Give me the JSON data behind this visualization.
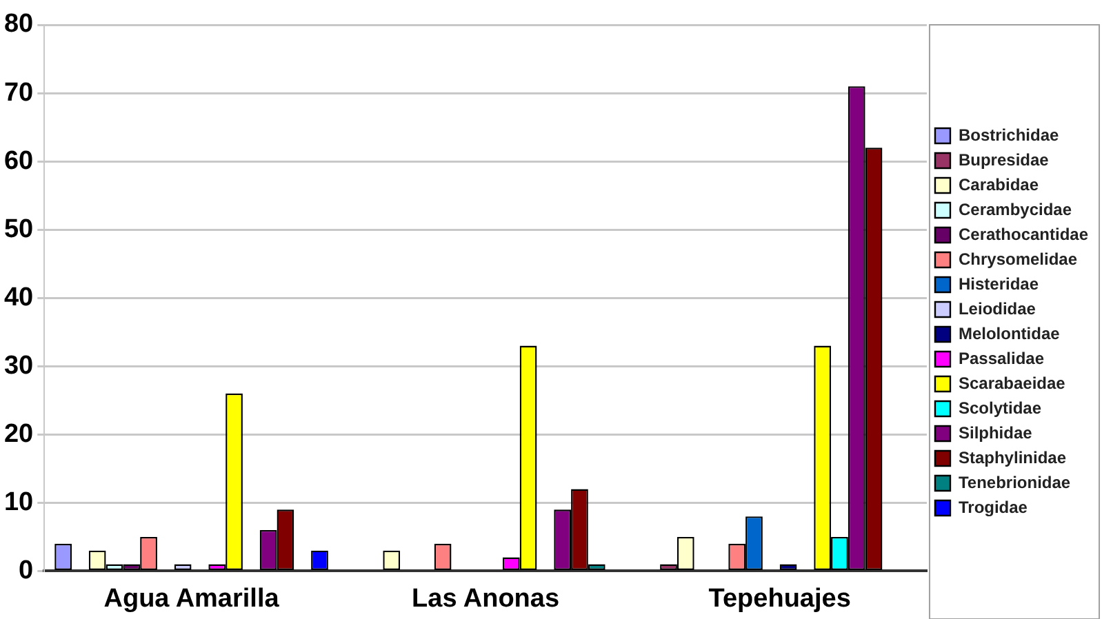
{
  "chart_data": {
    "type": "bar",
    "categories": [
      "Agua Amarilla",
      "Las Anonas",
      "Tepehuajes"
    ],
    "series": [
      {
        "name": "Bostrichidae",
        "color": "#9999ff",
        "values": [
          4,
          0,
          0
        ]
      },
      {
        "name": "Bupresidae",
        "color": "#993366",
        "values": [
          0,
          0,
          1
        ]
      },
      {
        "name": "Carabidae",
        "color": "#ffffcc",
        "values": [
          3,
          3,
          5
        ]
      },
      {
        "name": "Cerambycidae",
        "color": "#ccffff",
        "values": [
          1,
          0,
          0
        ]
      },
      {
        "name": "Cerathocantidae",
        "color": "#660066",
        "values": [
          1,
          0,
          0
        ]
      },
      {
        "name": "Chrysomelidae",
        "color": "#ff8080",
        "values": [
          5,
          4,
          4
        ]
      },
      {
        "name": "Histeridae",
        "color": "#0066cc",
        "values": [
          0,
          0,
          8
        ]
      },
      {
        "name": "Leiodidae",
        "color": "#ccccff",
        "values": [
          1,
          0,
          0
        ]
      },
      {
        "name": "Melolontidae",
        "color": "#000080",
        "values": [
          0,
          0,
          1
        ]
      },
      {
        "name": "Passalidae",
        "color": "#ff00ff",
        "values": [
          1,
          2,
          0
        ]
      },
      {
        "name": "Scarabaeidae",
        "color": "#ffff00",
        "values": [
          26,
          33,
          33
        ]
      },
      {
        "name": "Scolytidae",
        "color": "#00ffff",
        "values": [
          0,
          0,
          5
        ]
      },
      {
        "name": "Silphidae",
        "color": "#800080",
        "values": [
          6,
          9,
          71
        ]
      },
      {
        "name": "Staphylinidae",
        "color": "#800000",
        "values": [
          9,
          12,
          62
        ]
      },
      {
        "name": "Tenebrionidae",
        "color": "#008080",
        "values": [
          0,
          1,
          0
        ]
      },
      {
        "name": "Trogidae",
        "color": "#0000ff",
        "values": [
          3,
          0,
          0
        ]
      }
    ],
    "ylim": [
      0,
      80
    ],
    "yticks": [
      0,
      10,
      20,
      30,
      40,
      50,
      60,
      70,
      80
    ],
    "grid": "y",
    "legend": "right"
  }
}
